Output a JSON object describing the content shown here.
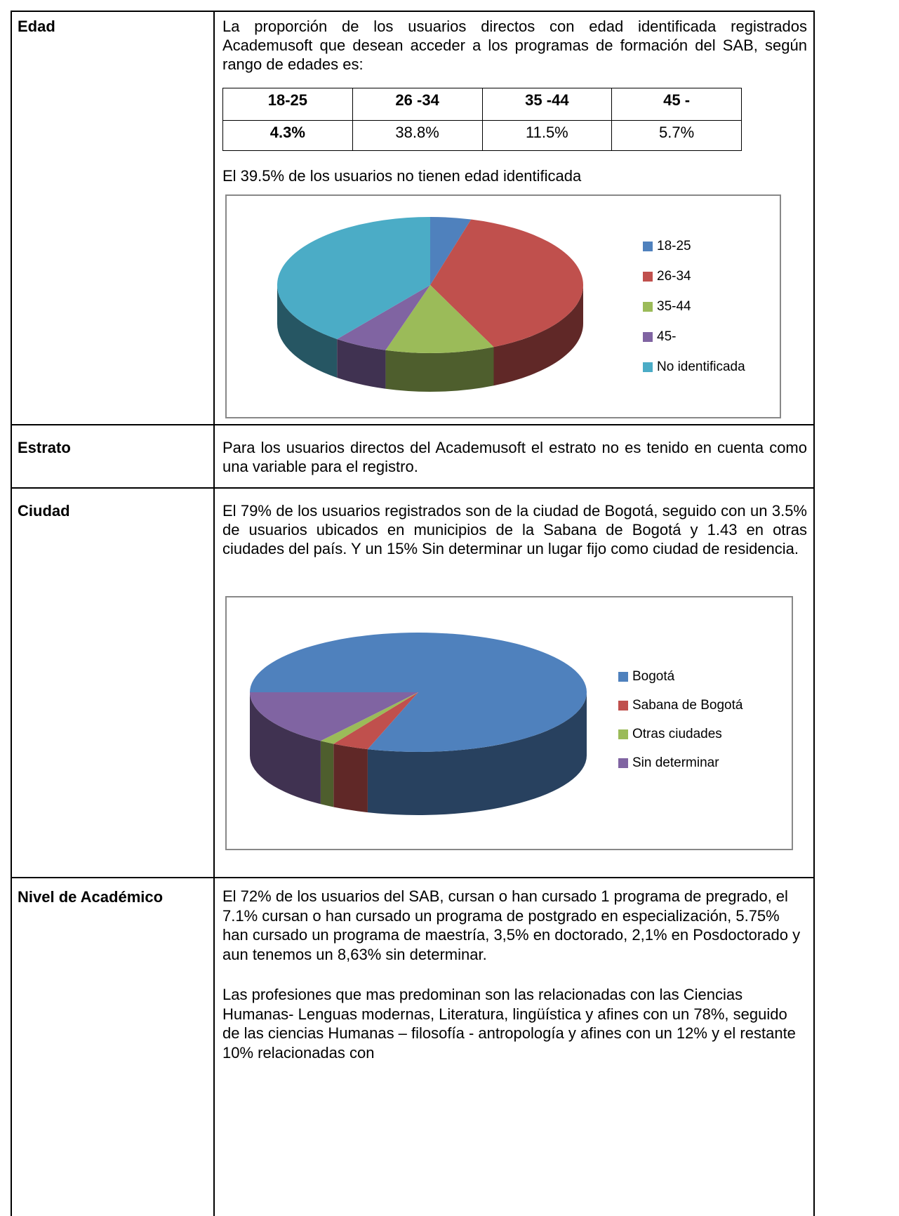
{
  "rows": [
    {
      "label": "Edad",
      "text": "La proporción de los usuarios directos con edad identificada registrados Academusoft que desean acceder a los programas de formación del SAB, según rango de edades es:",
      "table": {
        "header": [
          "18-25",
          "26 -34",
          "35 -44",
          "45 -"
        ],
        "values": [
          "4.3%",
          "38.8%",
          "11.5%",
          "5.7%"
        ]
      },
      "note": "El 39.5% de los usuarios no tienen edad identificada"
    },
    {
      "label": "Estrato",
      "text": "Para los usuarios directos del Academusoft el estrato no es tenido en cuenta como una variable para el registro."
    },
    {
      "label": "Ciudad",
      "text": "El 79% de los usuarios registrados son de la ciudad de Bogotá, seguido con un 3.5% de usuarios ubicados en municipios de la Sabana de Bogotá y 1.43 en otras ciudades del país. Y un 15% Sin determinar un lugar fijo como ciudad de residencia."
    },
    {
      "label": "Nivel de Académico",
      "text": "El 72% de los usuarios del SAB, cursan o han cursado 1 programa de pregrado, el 7.1% cursan o han cursado un programa de postgrado en especialización, 5.75% han cursado un programa de maestría, 3,5% en doctorado, 2,1% en Posdoctorado y aun tenemos un 8,63% sin determinar.",
      "note": "Las profesiones que mas predominan son las relacionadas con las Ciencias Humanas- Lenguas modernas, Literatura, lingüística y afines con un 78%, seguido de las ciencias Humanas – filosofía  - antropología y afines con un 12% y el restante 10% relacionadas con"
    }
  ],
  "chart_data": [
    {
      "type": "pie",
      "categories": [
        "18-25",
        "26-34",
        "35-44",
        "45-",
        "No identificada"
      ],
      "values": [
        4.3,
        38.8,
        11.5,
        5.7,
        39.5
      ],
      "colors": [
        "#4f81bd",
        "#c0504d",
        "#9bbb59",
        "#8064a2",
        "#4bacc6"
      ],
      "legend": "right"
    },
    {
      "type": "pie",
      "categories": [
        "Bogotá",
        "Sabana de Bogotá",
        "Otras ciudades",
        "Sin determinar"
      ],
      "values": [
        79,
        3.5,
        1.43,
        15
      ],
      "colors": [
        "#4f81bd",
        "#c0504d",
        "#9bbb59",
        "#8064a2"
      ],
      "legend": "right"
    }
  ]
}
